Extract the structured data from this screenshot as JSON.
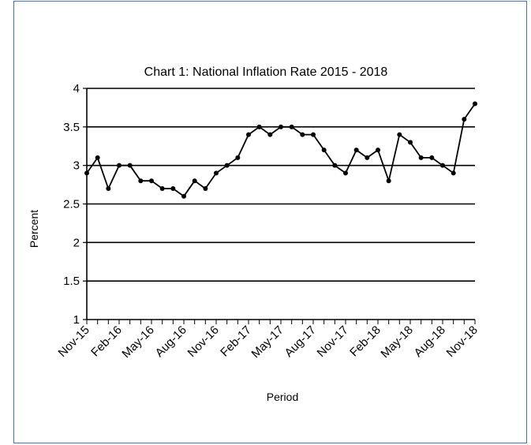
{
  "chart_data": {
    "type": "line",
    "title": "Chart 1: National Inflation Rate 2015 - 2018",
    "xlabel": "Period",
    "ylabel": "Percent",
    "ylim": [
      1,
      4
    ],
    "yticks": [
      "1",
      "1.5",
      "2",
      "2.5",
      "3",
      "3.5",
      "4"
    ],
    "x_tick_labels": [
      "Nov-15",
      "Feb-16",
      "May-16",
      "Aug-16",
      "Nov-16",
      "Feb-17",
      "May-17",
      "Aug-17",
      "Nov-17",
      "Feb-18",
      "May-18",
      "Aug-18",
      "Nov-18"
    ],
    "grid": "horizontal",
    "legend": "none",
    "line_color": "#000000",
    "series": [
      {
        "x": [
          "Nov-15",
          "Dec-15",
          "Jan-16",
          "Feb-16",
          "Mar-16",
          "Apr-16",
          "May-16",
          "Jun-16",
          "Jul-16",
          "Aug-16",
          "Sep-16",
          "Oct-16",
          "Nov-16",
          "Dec-16",
          "Jan-17",
          "Feb-17",
          "Mar-17",
          "Apr-17",
          "May-17",
          "Jun-17",
          "Jul-17",
          "Aug-17",
          "Sep-17",
          "Oct-17",
          "Nov-17",
          "Dec-17",
          "Jan-18",
          "Feb-18",
          "Mar-18",
          "Apr-18",
          "May-18",
          "Jun-18",
          "Jul-18",
          "Aug-18",
          "Sep-18",
          "Oct-18",
          "Nov-18"
        ],
        "values": [
          2.9,
          3.1,
          2.7,
          3.0,
          3.0,
          2.8,
          2.8,
          2.7,
          2.7,
          2.6,
          2.8,
          2.7,
          2.9,
          3.0,
          3.1,
          3.4,
          3.5,
          3.4,
          3.5,
          3.5,
          3.4,
          3.4,
          3.2,
          3.0,
          2.9,
          3.2,
          3.1,
          3.2,
          2.8,
          3.4,
          3.3,
          3.1,
          3.1,
          3.0,
          2.9,
          3.6,
          3.8
        ]
      }
    ]
  }
}
